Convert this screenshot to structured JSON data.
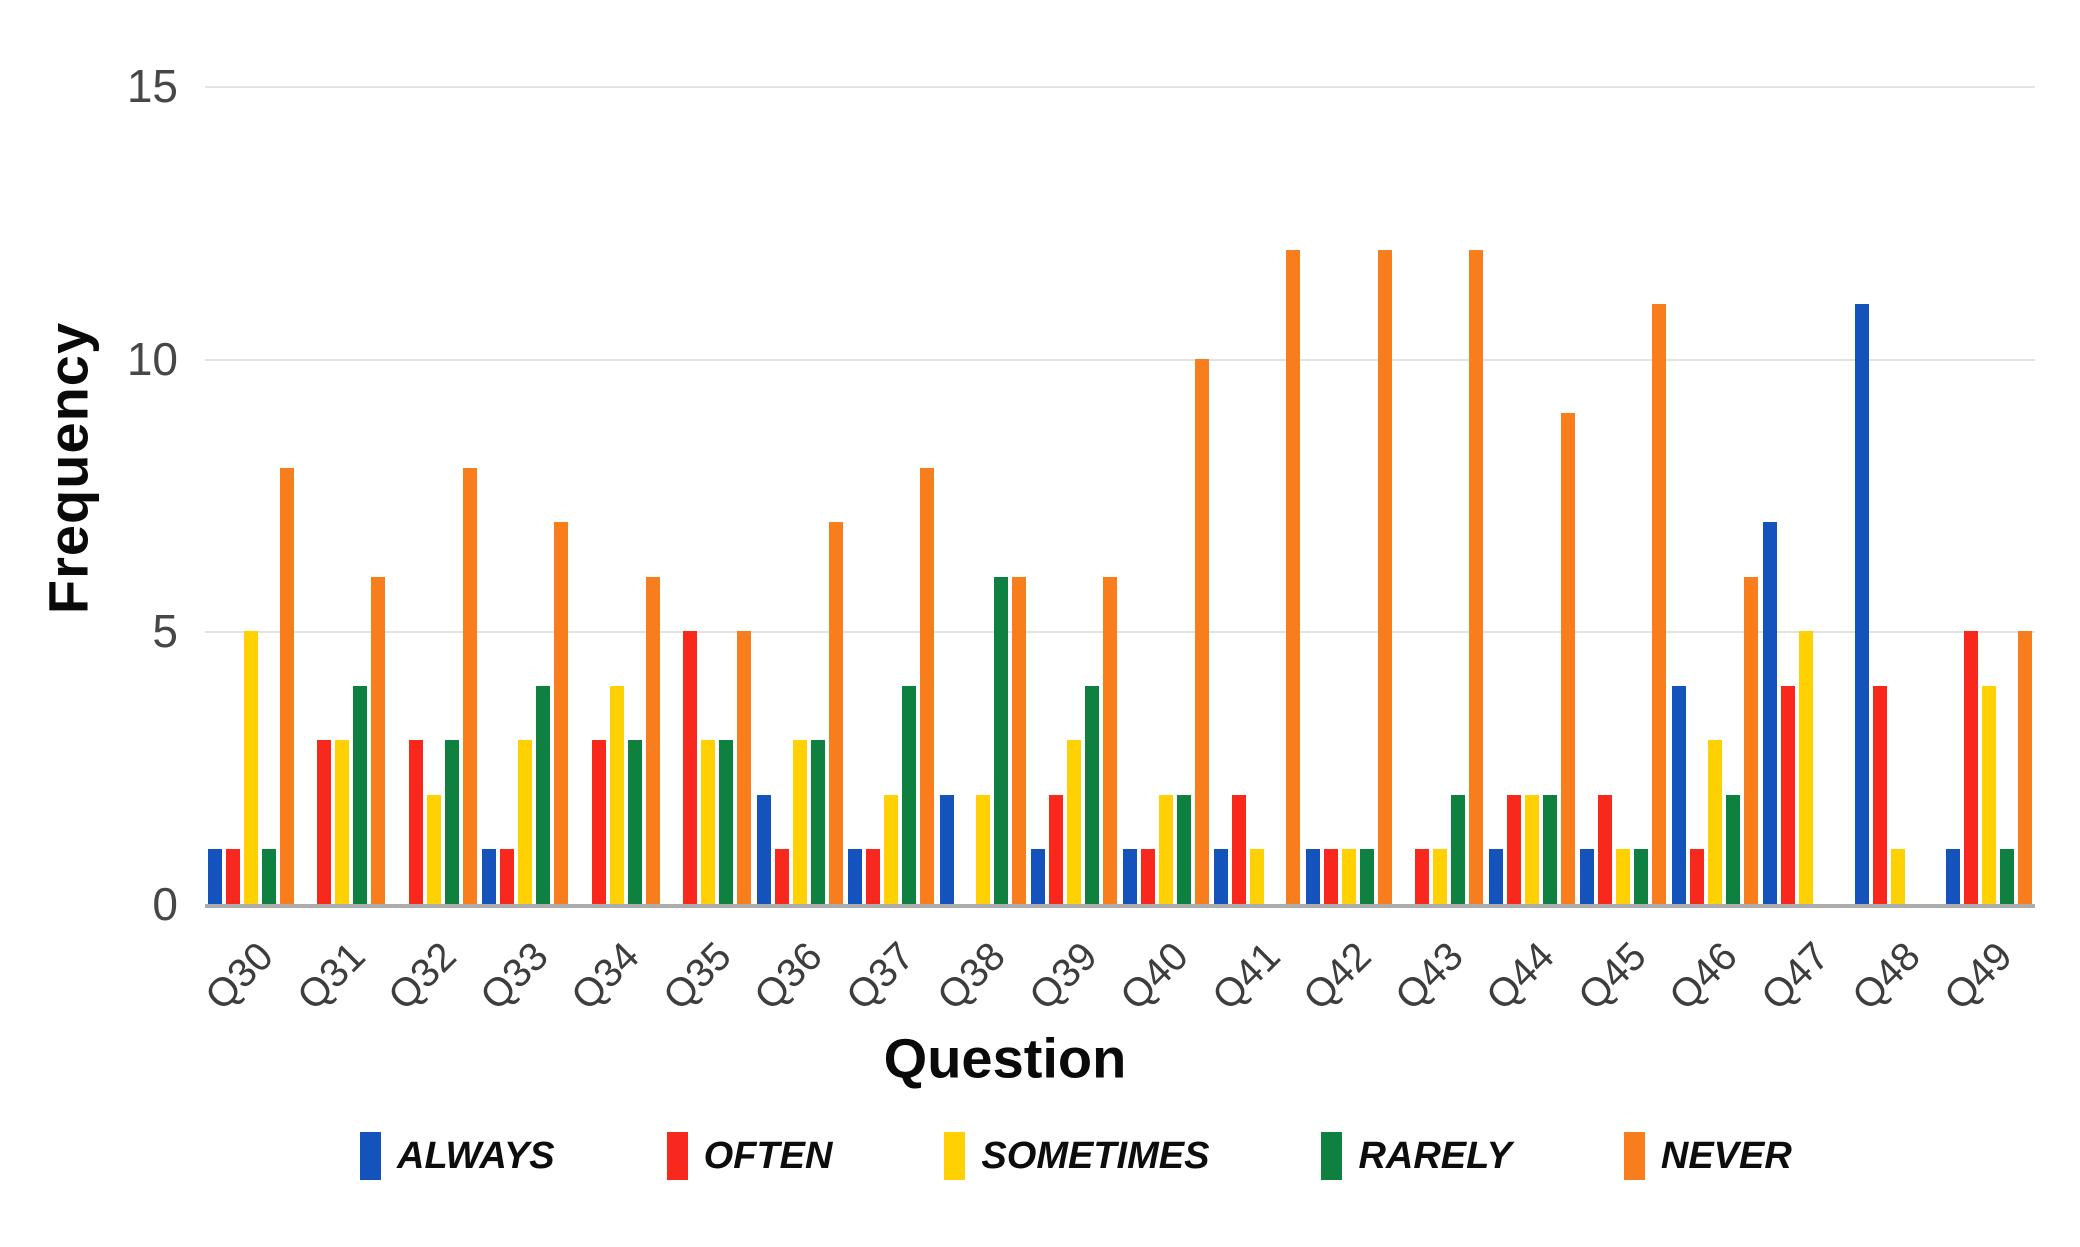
{
  "chart_data": {
    "type": "bar",
    "title": "",
    "xlabel": "Question",
    "ylabel": "Frequency",
    "categories": [
      "Q30",
      "Q31",
      "Q32",
      "Q33",
      "Q34",
      "Q35",
      "Q36",
      "Q37",
      "Q38",
      "Q39",
      "Q40",
      "Q41",
      "Q42",
      "Q43",
      "Q44",
      "Q45",
      "Q46",
      "Q47",
      "Q48",
      "Q49"
    ],
    "series": [
      {
        "name": "ALWAYS",
        "color": "#1553bc",
        "values": [
          1,
          0,
          0,
          1,
          0,
          0,
          2,
          1,
          2,
          1,
          1,
          1,
          1,
          0,
          1,
          1,
          4,
          7,
          11,
          1
        ]
      },
      {
        "name": "OFTEN",
        "color": "#f9281c",
        "values": [
          1,
          3,
          3,
          1,
          3,
          5,
          1,
          1,
          0,
          2,
          1,
          2,
          1,
          1,
          2,
          2,
          1,
          4,
          4,
          5
        ]
      },
      {
        "name": "SOMETIMES",
        "color": "#ffd002",
        "values": [
          5,
          3,
          2,
          3,
          4,
          3,
          3,
          2,
          2,
          3,
          2,
          1,
          1,
          1,
          2,
          1,
          3,
          5,
          1,
          4
        ]
      },
      {
        "name": "RARELY",
        "color": "#0e8040",
        "values": [
          1,
          4,
          3,
          4,
          3,
          3,
          3,
          4,
          6,
          4,
          2,
          0,
          1,
          2,
          2,
          1,
          2,
          0,
          0,
          1
        ]
      },
      {
        "name": "NEVER",
        "color": "#f87e1d",
        "values": [
          8,
          6,
          8,
          7,
          6,
          5,
          7,
          8,
          6,
          6,
          10,
          12,
          12,
          12,
          9,
          11,
          6,
          0,
          0,
          5
        ]
      }
    ],
    "ylim": [
      0,
      15
    ],
    "yticks": [
      0,
      5,
      10,
      15
    ],
    "grid": true,
    "legend_position": "bottom",
    "colors": {
      "gridline": "#e3e3e3",
      "baseline": "#adadad",
      "tick_text": "#474747",
      "title_text": "#0a0a0a"
    }
  }
}
